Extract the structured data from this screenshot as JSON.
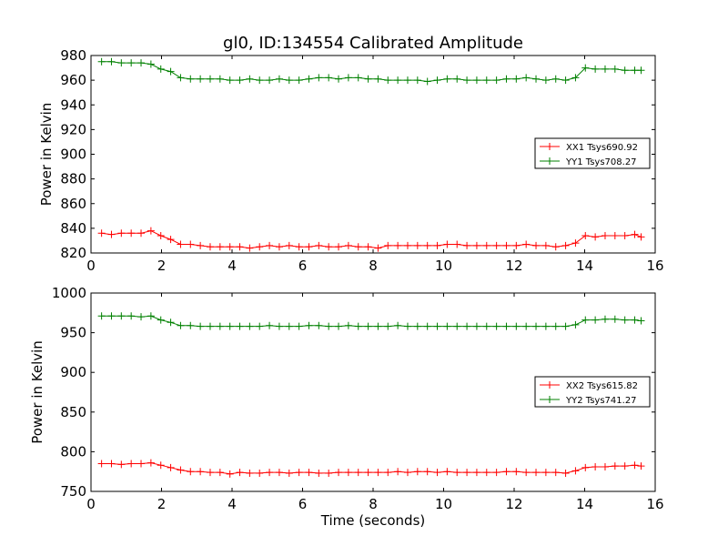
{
  "figure": {
    "title": "gl0, ID:134554 Calibrated Amplitude"
  },
  "chart_data": [
    {
      "type": "line",
      "title": "gl0, ID:134554 Calibrated Amplitude",
      "xlabel": "",
      "ylabel": "Power in Kelvin",
      "xlim": [
        0,
        16
      ],
      "ylim": [
        820,
        980
      ],
      "xticks": [
        0,
        2,
        4,
        6,
        8,
        10,
        12,
        14,
        16
      ],
      "yticks": [
        820,
        840,
        860,
        880,
        900,
        920,
        940,
        960,
        980
      ],
      "grid": false,
      "legend_position": "right",
      "x": [
        0.3,
        0.58,
        0.86,
        1.14,
        1.42,
        1.7,
        1.98,
        2.26,
        2.54,
        2.82,
        3.1,
        3.38,
        3.66,
        3.94,
        4.22,
        4.5,
        4.78,
        5.06,
        5.34,
        5.62,
        5.9,
        6.18,
        6.46,
        6.74,
        7.02,
        7.3,
        7.58,
        7.86,
        8.14,
        8.42,
        8.7,
        8.98,
        9.26,
        9.54,
        9.82,
        10.1,
        10.38,
        10.66,
        10.94,
        11.22,
        11.5,
        11.78,
        12.06,
        12.34,
        12.62,
        12.9,
        13.18,
        13.46,
        13.74,
        14.02,
        14.3,
        14.58,
        14.86,
        15.14,
        15.42,
        15.6
      ],
      "series": [
        {
          "name": "XX1 Tsys690.92",
          "color": "#ff0000",
          "values": [
            836,
            835,
            836,
            836,
            836,
            838,
            834,
            831,
            827,
            827,
            826,
            825,
            825,
            825,
            825,
            824,
            825,
            826,
            825,
            826,
            825,
            825,
            826,
            825,
            825,
            826,
            825,
            825,
            824,
            826,
            826,
            826,
            826,
            826,
            826,
            827,
            827,
            826,
            826,
            826,
            826,
            826,
            826,
            827,
            826,
            826,
            825,
            826,
            828,
            834,
            833,
            834,
            834,
            834,
            835,
            833
          ]
        },
        {
          "name": "YY1 Tsys708.27",
          "color": "#008000",
          "values": [
            975,
            975,
            974,
            974,
            974,
            973,
            969,
            967,
            962,
            961,
            961,
            961,
            961,
            960,
            960,
            961,
            960,
            960,
            961,
            960,
            960,
            961,
            962,
            962,
            961,
            962,
            962,
            961,
            961,
            960,
            960,
            960,
            960,
            959,
            960,
            961,
            961,
            960,
            960,
            960,
            960,
            961,
            961,
            962,
            961,
            960,
            961,
            960,
            962,
            970,
            969,
            969,
            969,
            968,
            968,
            968
          ]
        }
      ]
    },
    {
      "type": "line",
      "title": "",
      "xlabel": "Time (seconds)",
      "ylabel": "Power in Kelvin",
      "xlim": [
        0,
        16
      ],
      "ylim": [
        750,
        1000
      ],
      "xticks": [
        0,
        2,
        4,
        6,
        8,
        10,
        12,
        14,
        16
      ],
      "yticks": [
        750,
        800,
        850,
        900,
        950,
        1000
      ],
      "grid": false,
      "legend_position": "right",
      "x": [
        0.3,
        0.58,
        0.86,
        1.14,
        1.42,
        1.7,
        1.98,
        2.26,
        2.54,
        2.82,
        3.1,
        3.38,
        3.66,
        3.94,
        4.22,
        4.5,
        4.78,
        5.06,
        5.34,
        5.62,
        5.9,
        6.18,
        6.46,
        6.74,
        7.02,
        7.3,
        7.58,
        7.86,
        8.14,
        8.42,
        8.7,
        8.98,
        9.26,
        9.54,
        9.82,
        10.1,
        10.38,
        10.66,
        10.94,
        11.22,
        11.5,
        11.78,
        12.06,
        12.34,
        12.62,
        12.9,
        13.18,
        13.46,
        13.74,
        14.02,
        14.3,
        14.58,
        14.86,
        15.14,
        15.42,
        15.6
      ],
      "series": [
        {
          "name": "XX2 Tsys615.82",
          "color": "#ff0000",
          "values": [
            785,
            785,
            784,
            785,
            785,
            786,
            783,
            780,
            777,
            775,
            775,
            774,
            774,
            772,
            774,
            773,
            773,
            774,
            774,
            773,
            774,
            774,
            773,
            773,
            774,
            774,
            774,
            774,
            774,
            774,
            775,
            774,
            775,
            775,
            774,
            775,
            774,
            774,
            774,
            774,
            774,
            775,
            775,
            774,
            774,
            774,
            774,
            773,
            776,
            780,
            781,
            781,
            782,
            782,
            783,
            782
          ]
        },
        {
          "name": "YY2 Tsys741.27",
          "color": "#008000",
          "values": [
            971,
            971,
            971,
            971,
            970,
            971,
            966,
            963,
            959,
            959,
            958,
            958,
            958,
            958,
            958,
            958,
            958,
            959,
            958,
            958,
            958,
            959,
            959,
            958,
            958,
            959,
            958,
            958,
            958,
            958,
            959,
            958,
            958,
            958,
            958,
            958,
            958,
            958,
            958,
            958,
            958,
            958,
            958,
            958,
            958,
            958,
            958,
            958,
            960,
            966,
            966,
            967,
            967,
            966,
            966,
            965
          ]
        }
      ]
    }
  ]
}
